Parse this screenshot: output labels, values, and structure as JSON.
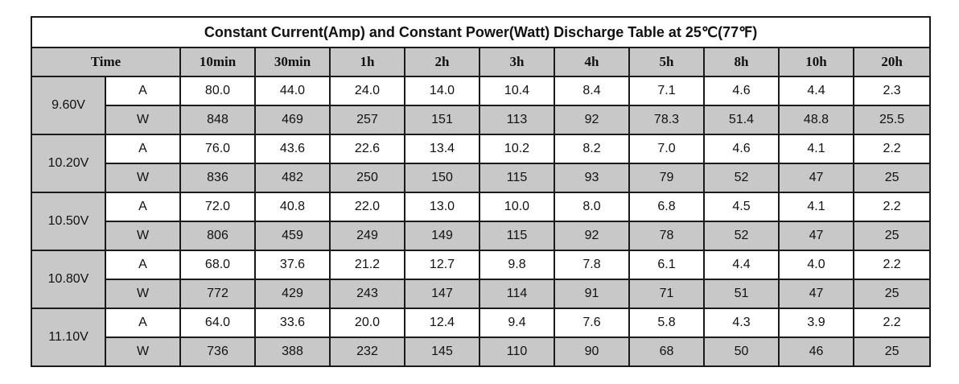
{
  "title": "Constant Current(Amp) and Constant Power(Watt) Discharge Table at 25℃(77℉)",
  "header": {
    "time_label": "Time",
    "columns": [
      "10min",
      "30min",
      "1h",
      "2h",
      "3h",
      "4h",
      "5h",
      "8h",
      "10h",
      "20h"
    ]
  },
  "groups": [
    {
      "voltage": "9.60V",
      "rows": [
        {
          "unit": "A",
          "values": [
            "80.0",
            "44.0",
            "24.0",
            "14.0",
            "10.4",
            "8.4",
            "7.1",
            "4.6",
            "4.4",
            "2.3"
          ]
        },
        {
          "unit": "W",
          "values": [
            "848",
            "469",
            "257",
            "151",
            "113",
            "92",
            "78.3",
            "51.4",
            "48.8",
            "25.5"
          ]
        }
      ]
    },
    {
      "voltage": "10.20V",
      "rows": [
        {
          "unit": "A",
          "values": [
            "76.0",
            "43.6",
            "22.6",
            "13.4",
            "10.2",
            "8.2",
            "7.0",
            "4.6",
            "4.1",
            "2.2"
          ]
        },
        {
          "unit": "W",
          "values": [
            "836",
            "482",
            "250",
            "150",
            "115",
            "93",
            "79",
            "52",
            "47",
            "25"
          ]
        }
      ]
    },
    {
      "voltage": "10.50V",
      "rows": [
        {
          "unit": "A",
          "values": [
            "72.0",
            "40.8",
            "22.0",
            "13.0",
            "10.0",
            "8.0",
            "6.8",
            "4.5",
            "4.1",
            "2.2"
          ]
        },
        {
          "unit": "W",
          "values": [
            "806",
            "459",
            "249",
            "149",
            "115",
            "92",
            "78",
            "52",
            "47",
            "25"
          ]
        }
      ]
    },
    {
      "voltage": "10.80V",
      "rows": [
        {
          "unit": "A",
          "values": [
            "68.0",
            "37.6",
            "21.2",
            "12.7",
            "9.8",
            "7.8",
            "6.1",
            "4.4",
            "4.0",
            "2.2"
          ]
        },
        {
          "unit": "W",
          "values": [
            "772",
            "429",
            "243",
            "147",
            "114",
            "91",
            "71",
            "51",
            "47",
            "25"
          ]
        }
      ]
    },
    {
      "voltage": "11.10V",
      "rows": [
        {
          "unit": "A",
          "values": [
            "64.0",
            "33.6",
            "20.0",
            "12.4",
            "9.4",
            "7.6",
            "5.8",
            "4.3",
            "3.9",
            "2.2"
          ]
        },
        {
          "unit": "W",
          "values": [
            "736",
            "388",
            "232",
            "145",
            "110",
            "90",
            "68",
            "50",
            "46",
            "25"
          ]
        }
      ]
    }
  ]
}
